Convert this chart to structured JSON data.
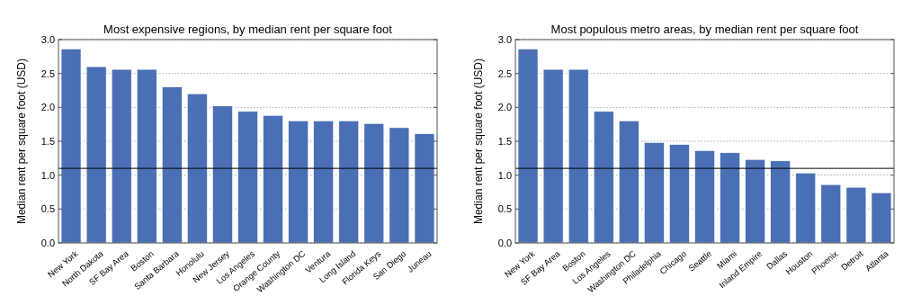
{
  "chart_data": [
    {
      "type": "bar",
      "title": "Most expensive regions, by median rent per square foot",
      "ylabel": "Median rent per square foot (USD)",
      "categories": [
        "New York",
        "North Dakota",
        "SF Bay Area",
        "Boston",
        "Santa Barbara",
        "Honolulu",
        "New Jersey",
        "Los Angeles",
        "Orange County",
        "Washington DC",
        "Ventura",
        "Long Island",
        "Florida Keys",
        "San Diego",
        "Juneau"
      ],
      "values": [
        2.86,
        2.6,
        2.56,
        2.56,
        2.3,
        2.2,
        2.02,
        1.94,
        1.88,
        1.8,
        1.8,
        1.8,
        1.76,
        1.7,
        1.61
      ],
      "color": "#4a6fb5",
      "ylim": [
        0,
        3
      ],
      "yticks": [
        {
          "value": 0,
          "label": "0.0"
        },
        0.5,
        {
          "value": 1,
          "label": "1.0"
        },
        1.5,
        {
          "value": 2,
          "label": "2.0"
        },
        2.5,
        {
          "value": 3,
          "label": "3.0"
        }
      ],
      "grid": "y",
      "ref_lines": [
        {
          "axis": "y",
          "value": 1.1,
          "color": "#000000"
        }
      ]
    },
    {
      "type": "bar",
      "title": "Most populous metro areas, by median rent per square foot",
      "ylabel": "Median rent per square foot (USD)",
      "categories": [
        "New York",
        "SF Bay Area",
        "Boston",
        "Los Angeles",
        "Washington DC",
        "Philadelphia",
        "Chicago",
        "Seattle",
        "Miami",
        "Inland Empire",
        "Dallas",
        "Houston",
        "Phoenix",
        "Detroit",
        "Atlanta"
      ],
      "values": [
        2.86,
        2.56,
        2.56,
        1.94,
        1.8,
        1.48,
        1.45,
        1.36,
        1.33,
        1.23,
        1.21,
        1.03,
        0.86,
        0.82,
        0.74
      ],
      "color": "#4a6fb5",
      "ylim": [
        0,
        3
      ],
      "yticks": [
        {
          "value": 0,
          "label": "0.0"
        },
        0.5,
        {
          "value": 1,
          "label": "1.0"
        },
        1.5,
        {
          "value": 2,
          "label": "2.0"
        },
        2.5,
        {
          "value": 3,
          "label": "3.0"
        }
      ],
      "grid": "y",
      "ref_lines": [
        {
          "axis": "y",
          "value": 1.1,
          "color": "#000000"
        }
      ]
    }
  ]
}
